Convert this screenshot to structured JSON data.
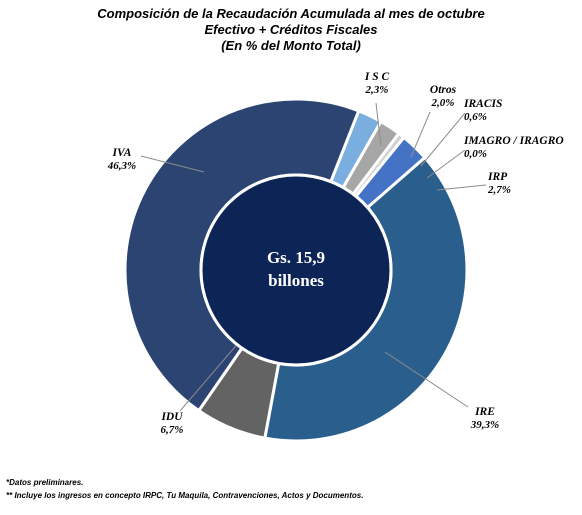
{
  "title_lines": [
    "Composición de la Recaudación Acumulada al mes de octubre",
    "Efectivo + Créditos Fiscales",
    "(En % del Monto Total)"
  ],
  "center_label": [
    "Gs. 15,9",
    "billones"
  ],
  "footnotes": [
    "*Datos preliminares.",
    "** Incluye los ingresos en concepto IRPC, Tu Maquila, Contravenciones, Actos y Documentos."
  ],
  "chart_data": {
    "type": "pie",
    "donut": true,
    "title": "Composición de la Recaudación Acumulada al mes de octubre",
    "subtitle": "Efectivo + Créditos Fiscales (En % del Monto Total)",
    "unit": "%",
    "total_label": "Gs. 15,9 billones",
    "slices": [
      {
        "name": "I S C",
        "value": 2.3,
        "label": "2,3%",
        "color": "#7aaedf"
      },
      {
        "name": "Otros",
        "value": 2.0,
        "label": "2,0%",
        "color": "#a6a6a6"
      },
      {
        "name": "IRACIS",
        "value": 0.6,
        "label": "0,6%",
        "color": "#d0d0d0"
      },
      {
        "name": "IMAGRO / IRAGRO",
        "value": 0.0,
        "label": "0,0%",
        "color": "#bfbfbf"
      },
      {
        "name": "IRP",
        "value": 2.7,
        "label": "2,7%",
        "color": "#4472c4"
      },
      {
        "name": "IRE",
        "value": 39.3,
        "label": "39,3%",
        "color": "#2a5e8c"
      },
      {
        "name": "IDU",
        "value": 6.7,
        "label": "6,7%",
        "color": "#636363"
      },
      {
        "name": "IVA",
        "value": 46.3,
        "label": "46,3%",
        "color": "#2b4471"
      }
    ],
    "center_color": "#0d2456",
    "start_angle_deg": 21.5
  }
}
